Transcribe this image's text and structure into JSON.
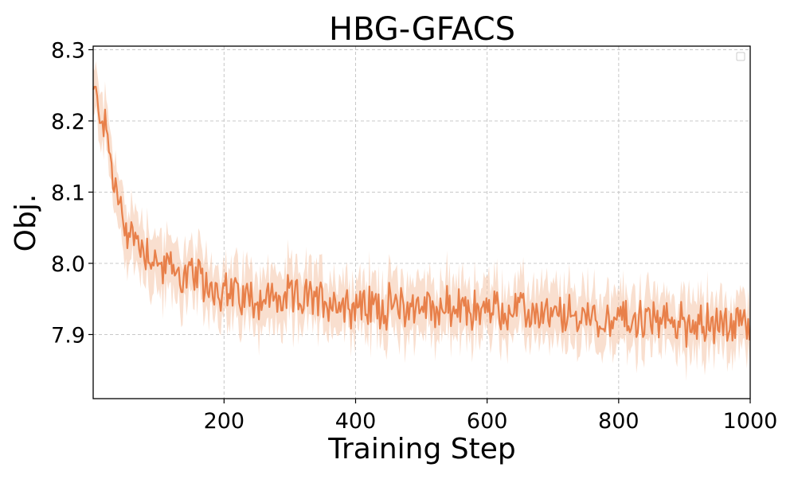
{
  "chart_data": {
    "type": "line",
    "title": "HBG-GFACS",
    "xlabel": "Training Step",
    "ylabel": "Obj.",
    "xlim": [
      1,
      1000
    ],
    "ylim": [
      7.81,
      8.305
    ],
    "xticks": [
      200,
      400,
      600,
      800,
      1000
    ],
    "yticks": [
      7.9,
      8.0,
      8.1,
      8.2,
      8.3
    ],
    "xtick_labels": [
      "200",
      "400",
      "600",
      "800",
      "1000"
    ],
    "ytick_labels": [
      "7.9",
      "8.0",
      "8.1",
      "8.2",
      "8.3"
    ],
    "grid": true,
    "legend": {
      "placement": "top-right",
      "entries": []
    },
    "series": [
      {
        "color": "#e8804a",
        "band_color": "#f4c5a8",
        "x": [
          1,
          10,
          20,
          30,
          40,
          50,
          60,
          80,
          100,
          120,
          150,
          200,
          250,
          300,
          350,
          400,
          450,
          500,
          550,
          600,
          650,
          700,
          750,
          800,
          850,
          900,
          950,
          1000
        ],
        "y": [
          8.24,
          8.22,
          8.19,
          8.13,
          8.08,
          8.05,
          8.04,
          8.02,
          8.0,
          7.99,
          7.98,
          7.96,
          7.95,
          7.95,
          7.95,
          7.94,
          7.94,
          7.94,
          7.935,
          7.935,
          7.93,
          7.925,
          7.925,
          7.92,
          7.92,
          7.915,
          7.915,
          7.91
        ],
        "band": [
          0.03,
          0.035,
          0.035,
          0.04,
          0.04,
          0.04,
          0.04,
          0.04,
          0.04,
          0.04,
          0.04,
          0.04,
          0.04,
          0.04,
          0.04,
          0.04,
          0.04,
          0.04,
          0.04,
          0.04,
          0.04,
          0.04,
          0.04,
          0.04,
          0.04,
          0.04,
          0.04,
          0.04
        ]
      }
    ]
  }
}
